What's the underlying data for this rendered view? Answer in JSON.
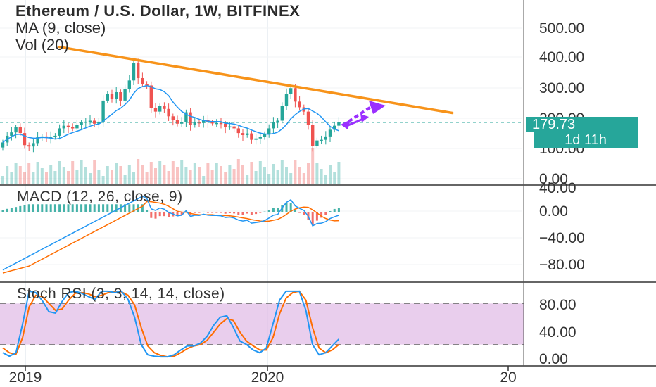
{
  "header": {
    "title": "Ethereum / U.S. Dollar, 1W, BITFINEX",
    "indicator_ma": "MA (9, close)",
    "indicator_vol": "Vol (20)"
  },
  "panes": {
    "macd_label": "MACD (12, 26, close, 9)",
    "stoch_label": "Stoch RSI (3, 3, 14, 14, close)"
  },
  "badges": {
    "last_price": "179.73",
    "countdown": "1d 11h"
  },
  "colors": {
    "up": "#26a69a",
    "down": "#ef5350",
    "trendline": "#f7931a",
    "arrow": "#9b30ff",
    "ma": "#2196f3",
    "macd": "#2196f3",
    "signal": "#ff6d00",
    "stoch_k": "#2196f3",
    "stoch_d": "#ff6d00",
    "stoch_band": "#e1bee7"
  },
  "chart_data": [
    {
      "type": "candlestick",
      "title": "Ethereum / U.S. Dollar, 1W, BITFINEX",
      "x_ticks": [
        "2019",
        "2020",
        "20"
      ],
      "y_ticks": [
        "0.00",
        "100.00",
        "200.00",
        "300.00",
        "400.00",
        "500.00"
      ],
      "ylim": [
        -5,
        545
      ],
      "close": [
        120,
        140,
        150,
        165,
        148,
        112,
        108,
        118,
        136,
        138,
        135,
        137,
        140,
        162,
        170,
        165,
        162,
        172,
        180,
        182,
        185,
        176,
        182,
        245,
        265,
        250,
        270,
        245,
        280,
        305,
        358,
        312,
        295,
        290,
        222,
        212,
        228,
        220,
        198,
        188,
        176,
        180,
        210,
        172,
        180,
        178,
        187,
        180,
        178,
        178,
        176,
        165,
        168,
        162,
        148,
        142,
        147,
        128,
        132,
        136,
        145,
        162,
        180,
        185,
        228,
        265,
        282,
        242,
        225,
        212,
        172,
        110,
        126,
        128,
        138,
        158,
        170,
        180
      ],
      "last_price": 179.73,
      "ma_label": "MA (9, close)",
      "volume_label": "Vol (20)",
      "trendline": {
        "from": {
          "index": 13,
          "value": 405
        },
        "to": {
          "index": 103,
          "value": 208
        }
      }
    },
    {
      "type": "line",
      "title": "MACD (12, 26, close, 9)",
      "y_ticks": [
        "40.00",
        "0.00",
        "−40.00",
        "−80.00"
      ],
      "ylim": [
        -100,
        40
      ],
      "series": [
        {
          "name": "MACD",
          "values": [
            -96,
            28
          ]
        },
        {
          "name": "Signal",
          "values": [
            -96,
            18
          ]
        }
      ]
    },
    {
      "type": "line",
      "title": "Stoch RSI (3, 3, 14, 14, close)",
      "y_ticks": [
        "80.00",
        "40.00",
        "0.00"
      ],
      "ylim": [
        -3,
        103
      ],
      "bands": [
        20,
        80
      ],
      "series": [
        {
          "name": "K",
          "values": [
            8,
            3,
            8,
            50,
            98,
            96,
            84,
            68,
            66,
            83,
            96,
            98,
            95,
            90,
            86,
            98,
            98,
            96,
            98,
            86,
            60,
            20,
            5,
            3,
            2,
            2,
            5,
            12,
            18,
            18,
            22,
            32,
            48,
            60,
            62,
            45,
            25,
            20,
            12,
            8,
            15,
            50,
            85,
            98,
            98,
            98,
            70,
            20,
            5,
            8,
            18,
            28
          ]
        },
        {
          "name": "D",
          "values": [
            15,
            8,
            6,
            30,
            75,
            92,
            90,
            80,
            70,
            72,
            85,
            95,
            96,
            94,
            90,
            92,
            96,
            97,
            97,
            92,
            78,
            45,
            18,
            8,
            4,
            2,
            3,
            8,
            14,
            18,
            20,
            26,
            38,
            50,
            58,
            55,
            38,
            25,
            18,
            12,
            12,
            30,
            65,
            88,
            96,
            98,
            85,
            45,
            15,
            8,
            12,
            20
          ]
        }
      ]
    }
  ]
}
